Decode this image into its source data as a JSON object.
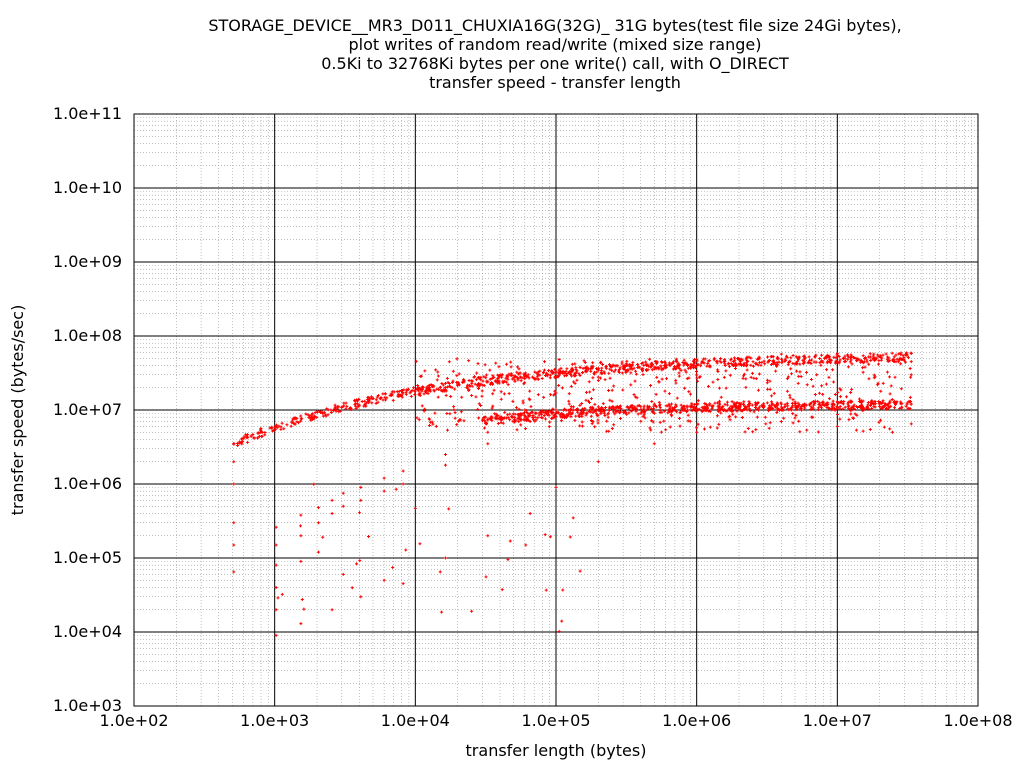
{
  "chart_data": {
    "type": "scatter",
    "title_lines": [
      "STORAGE_DEVICE__MR3_D011_CHUXIA16G(32G)_ 31G bytes(test file size 24Gi bytes),",
      "plot writes of random read/write (mixed size range)",
      "0.5Ki to 32768Ki bytes per one write() call, with O_DIRECT",
      "transfer speed - transfer length"
    ],
    "xlabel": "transfer length (bytes)",
    "ylabel": "transfer speed (bytes/sec)",
    "x_scale": "log",
    "y_scale": "log",
    "xlim": [
      100,
      100000000
    ],
    "ylim": [
      1000,
      100000000000
    ],
    "x_tick_labels": [
      "1.0e+02",
      "1.0e+03",
      "1.0e+04",
      "1.0e+05",
      "1.0e+06",
      "1.0e+07",
      "1.0e+08"
    ],
    "y_tick_labels": [
      "1.0e+03",
      "1.0e+04",
      "1.0e+05",
      "1.0e+06",
      "1.0e+07",
      "1.0e+08",
      "1.0e+09",
      "1.0e+10",
      "1.0e+11"
    ],
    "grid": true,
    "legend": "none",
    "series": [
      {
        "color": "#ff0000",
        "marker": "small cross",
        "point_groups": [
          {
            "desc": "upper band (fast writes)",
            "x_range": [
              512,
              33554432
            ],
            "y_start": 3500000,
            "y_end": 58000000
          },
          {
            "desc": "middle band",
            "x_range": [
              30000,
              33554432
            ],
            "y_start": 7000000,
            "y_end": 12000000
          },
          {
            "desc": "scattered lower points",
            "x_range": [
              10000,
              33554432
            ],
            "y_min": 5000000,
            "y_max": 50000000
          },
          {
            "desc": "low outliers",
            "x_range": [
              1024,
              200000
            ],
            "y_min": 10000,
            "y_max": 1000000
          }
        ],
        "sample_points": [
          [
            512,
            3500000
          ],
          [
            512,
            2000000
          ],
          [
            512,
            1000000
          ],
          [
            512,
            300000
          ],
          [
            512,
            150000
          ],
          [
            512,
            65000
          ],
          [
            1024,
            260000
          ],
          [
            1024,
            150000
          ],
          [
            1024,
            80000
          ],
          [
            1024,
            40000
          ],
          [
            1024,
            20000
          ],
          [
            1024,
            9000
          ],
          [
            1536,
            380000
          ],
          [
            1536,
            200000
          ],
          [
            1536,
            90000
          ],
          [
            1536,
            13000
          ],
          [
            2048,
            480000
          ],
          [
            2048,
            300000
          ],
          [
            2048,
            120000
          ],
          [
            2560,
            600000
          ],
          [
            2560,
            400000
          ],
          [
            2560,
            20000
          ],
          [
            3072,
            750000
          ],
          [
            3072,
            500000
          ],
          [
            3072,
            60000
          ],
          [
            4096,
            900000
          ],
          [
            4096,
            600000
          ],
          [
            4096,
            30000
          ],
          [
            6000,
            1200000
          ],
          [
            6000,
            800000
          ],
          [
            6000,
            50000
          ],
          [
            8192,
            1500000
          ],
          [
            8192,
            1000000
          ],
          [
            8192,
            45000
          ],
          [
            16384,
            2500000
          ],
          [
            16384,
            1800000
          ],
          [
            16384,
            100000
          ],
          [
            32768,
            5000000
          ],
          [
            32768,
            3500000
          ],
          [
            32768,
            200000
          ],
          [
            65536,
            9000000
          ],
          [
            65536,
            7000000
          ],
          [
            65536,
            400000
          ],
          [
            100000,
            17000000
          ],
          [
            100000,
            10000000
          ],
          [
            100000,
            900000
          ],
          [
            200000,
            25000000
          ],
          [
            200000,
            11000000
          ],
          [
            200000,
            2000000
          ],
          [
            500000,
            38000000
          ],
          [
            500000,
            12000000
          ],
          [
            500000,
            3500000
          ],
          [
            1000000,
            48000000
          ],
          [
            1000000,
            12000000
          ],
          [
            1000000,
            5000000
          ],
          [
            4000000,
            57000000
          ],
          [
            4000000,
            12000000
          ],
          [
            4000000,
            7000000
          ],
          [
            10000000,
            58000000
          ],
          [
            10000000,
            13000000
          ],
          [
            10000000,
            6000000
          ],
          [
            33554432,
            58000000
          ],
          [
            33554432,
            30000000
          ],
          [
            33554432,
            12000000
          ],
          [
            33554432,
            6500000
          ]
        ]
      }
    ]
  }
}
